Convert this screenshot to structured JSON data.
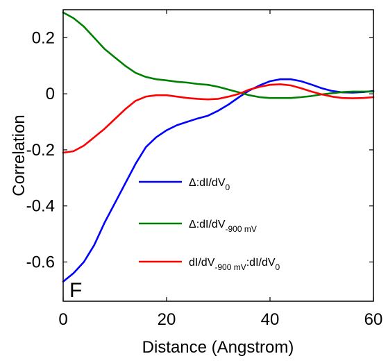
{
  "chart_data": {
    "type": "line",
    "title": "",
    "xlabel": "Distance (Angstrom)",
    "ylabel": "Correlation",
    "xlim": [
      0,
      60
    ],
    "ylim": [
      -0.74,
      0.3
    ],
    "xticks": [
      0,
      20,
      40,
      60
    ],
    "xtick_labels": [
      "0",
      "20",
      "40",
      "60"
    ],
    "yticks": [
      0.2,
      0,
      -0.2,
      -0.4,
      -0.6
    ],
    "ytick_labels": [
      "0.2",
      "0",
      "-0.2",
      "-0.4",
      "-0.6"
    ],
    "grid": false,
    "legend_position": "center-right",
    "panel_label": "F",
    "series": [
      {
        "name": "Δ:dI/dV0",
        "legend": {
          "main": "Δ:dI/dV",
          "sub": "0"
        },
        "color": "#0000ff",
        "x": [
          0,
          2,
          4,
          6,
          8,
          10,
          12,
          14,
          16,
          18,
          20,
          22,
          24,
          26,
          28,
          30,
          32,
          34,
          36,
          38,
          40,
          42,
          44,
          46,
          48,
          50,
          52,
          54,
          56,
          58,
          60
        ],
        "y": [
          -0.67,
          -0.64,
          -0.6,
          -0.54,
          -0.46,
          -0.39,
          -0.32,
          -0.25,
          -0.19,
          -0.155,
          -0.13,
          -0.112,
          -0.1,
          -0.088,
          -0.078,
          -0.06,
          -0.038,
          -0.012,
          0.012,
          0.03,
          0.045,
          0.052,
          0.052,
          0.045,
          0.033,
          0.02,
          0.01,
          0.005,
          0.004,
          0.006,
          0.01
        ]
      },
      {
        "name": "Δ:dI/dV-900 mV",
        "legend": {
          "main": "Δ:dI/dV",
          "sub": "-900 mV"
        },
        "color": "#008000",
        "x": [
          0,
          2,
          4,
          6,
          8,
          10,
          12,
          14,
          16,
          18,
          20,
          22,
          24,
          26,
          28,
          30,
          32,
          34,
          36,
          38,
          40,
          42,
          44,
          46,
          48,
          50,
          52,
          54,
          56,
          58,
          60
        ],
        "y": [
          0.29,
          0.27,
          0.24,
          0.2,
          0.16,
          0.13,
          0.1,
          0.075,
          0.06,
          0.052,
          0.048,
          0.043,
          0.04,
          0.035,
          0.032,
          0.025,
          0.015,
          0.005,
          -0.005,
          -0.012,
          -0.015,
          -0.015,
          -0.015,
          -0.012,
          -0.008,
          -0.002,
          0.002,
          0.006,
          0.008,
          0.008,
          0.008
        ]
      },
      {
        "name": "dI/dV-900 mV:dI/dV0",
        "legend": {
          "main": "dI/dV",
          "sub": "-900 mV",
          "main2": ":dI/dV",
          "sub2": "0"
        },
        "color": "#ff0000",
        "x": [
          0,
          2,
          4,
          6,
          8,
          10,
          12,
          14,
          16,
          18,
          20,
          22,
          24,
          26,
          28,
          30,
          32,
          34,
          36,
          38,
          40,
          42,
          44,
          46,
          48,
          50,
          52,
          54,
          56,
          58,
          60
        ],
        "y": [
          -0.21,
          -0.205,
          -0.185,
          -0.155,
          -0.125,
          -0.09,
          -0.055,
          -0.025,
          -0.01,
          -0.005,
          -0.005,
          -0.01,
          -0.015,
          -0.018,
          -0.02,
          -0.018,
          -0.01,
          0,
          0.015,
          0.025,
          0.032,
          0.034,
          0.03,
          0.02,
          0.008,
          -0.002,
          -0.01,
          -0.015,
          -0.016,
          -0.015,
          -0.012
        ]
      }
    ]
  }
}
